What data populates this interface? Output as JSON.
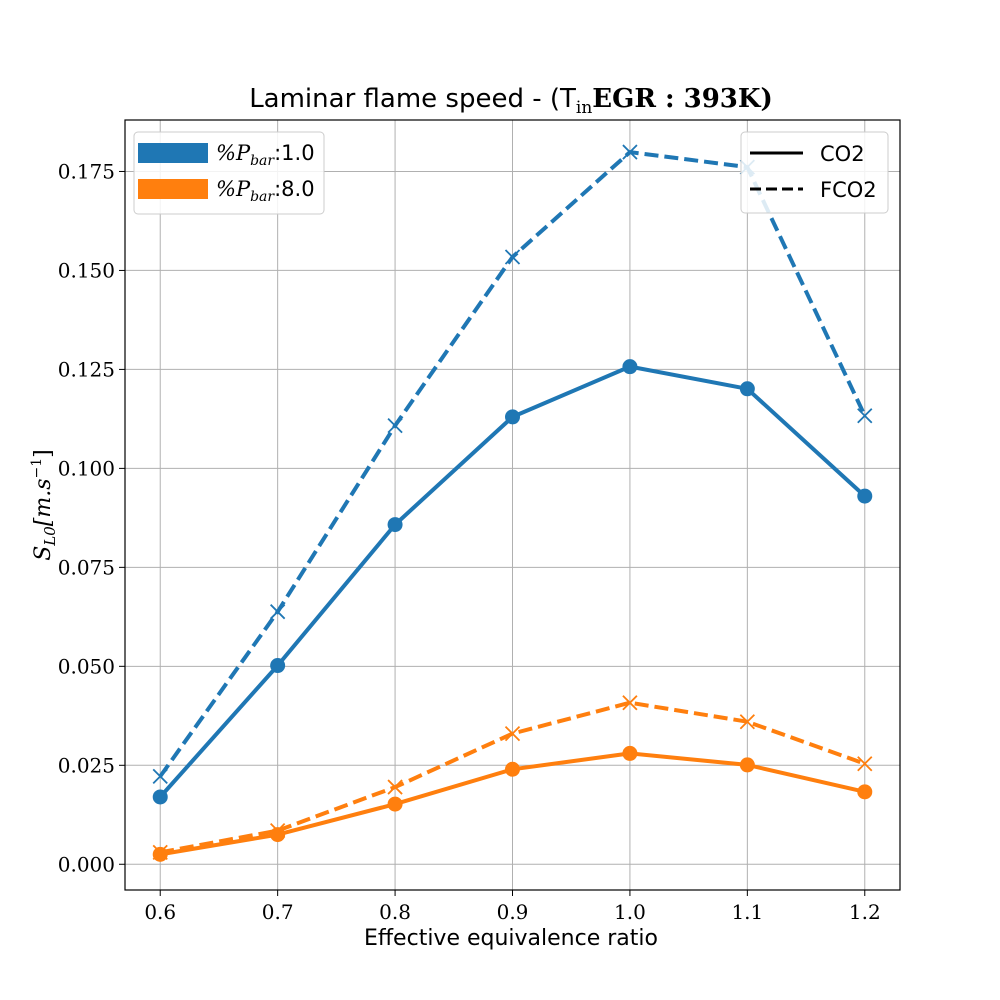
{
  "chart_data": {
    "type": "line",
    "title": "Laminar flame speed - (T",
    "title_sub": "in",
    "title_rest": "EGR : 393K)",
    "xlabel": "Effective equivalence ratio",
    "ylabel": "S",
    "ylabel_sub": "L0",
    "ylabel_rest": "[m.s",
    "ylabel_sup": "−1",
    "ylabel_end": "]",
    "xlim": [
      0.57,
      1.23
    ],
    "ylim": [
      -0.0065,
      0.188
    ],
    "x_ticks": [
      0.6,
      0.7,
      0.8,
      0.9,
      1.0,
      1.1,
      1.2
    ],
    "x_tick_labels": [
      "0.6",
      "0.7",
      "0.8",
      "0.9",
      "1.0",
      "1.1",
      "1.2"
    ],
    "y_ticks": [
      0.0,
      0.025,
      0.05,
      0.075,
      0.1,
      0.125,
      0.15,
      0.175
    ],
    "y_tick_labels": [
      "0.000",
      "0.025",
      "0.050",
      "0.075",
      "0.100",
      "0.125",
      "0.150",
      "0.175"
    ],
    "grid": true,
    "x": [
      0.6,
      0.7,
      0.8,
      0.9,
      1.0,
      1.1,
      1.2
    ],
    "series": [
      {
        "pressure": "1.0",
        "gas": "CO2",
        "color": "#1f77b4",
        "style": "solid",
        "marker": "circle",
        "values": [
          0.017,
          0.0502,
          0.0858,
          0.113,
          0.1257,
          0.1201,
          0.093
        ]
      },
      {
        "pressure": "1.0",
        "gas": "FCO2",
        "color": "#1f77b4",
        "style": "dashed",
        "marker": "x",
        "values": [
          0.0222,
          0.0638,
          0.1108,
          0.1534,
          0.1799,
          0.1761,
          0.1133
        ]
      },
      {
        "pressure": "8.0",
        "gas": "CO2",
        "color": "#ff7f0e",
        "style": "solid",
        "marker": "circle",
        "values": [
          0.0025,
          0.0075,
          0.0152,
          0.024,
          0.028,
          0.0251,
          0.0183
        ]
      },
      {
        "pressure": "8.0",
        "gas": "FCO2",
        "color": "#ff7f0e",
        "style": "dashed",
        "marker": "x",
        "values": [
          0.003,
          0.0085,
          0.0195,
          0.033,
          0.0408,
          0.036,
          0.0254
        ]
      }
    ],
    "legend_pressure": {
      "placement": "top-left",
      "entries": [
        {
          "prefix": "%P",
          "sub": "bar",
          "value": ":1.0",
          "color": "#1f77b4"
        },
        {
          "prefix": "%P",
          "sub": "bar",
          "value": ":8.0",
          "color": "#ff7f0e"
        }
      ]
    },
    "legend_gas": {
      "placement": "top-right",
      "entries": [
        {
          "label": "CO2",
          "style": "solid"
        },
        {
          "label": "FCO2",
          "style": "dashed"
        }
      ]
    }
  }
}
